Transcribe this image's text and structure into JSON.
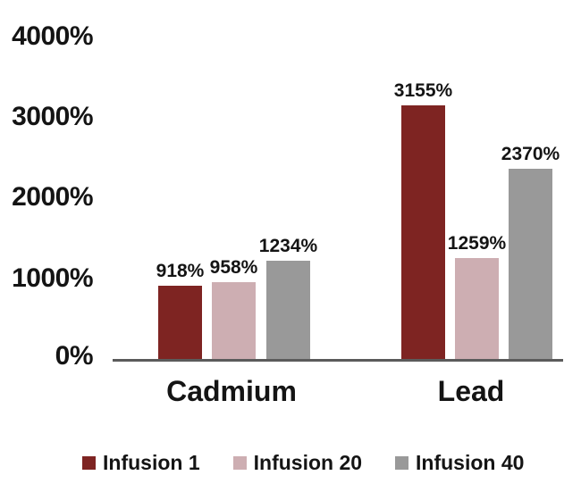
{
  "chart_data": {
    "type": "bar",
    "title": "",
    "categories": [
      "Cadmium",
      "Lead"
    ],
    "series": [
      {
        "name": "Infusion 1",
        "color": "#7E2422",
        "values": [
          918,
          3155
        ],
        "labels": [
          "918%",
          "3155%"
        ]
      },
      {
        "name": "Infusion 20",
        "color": "#CDAEB2",
        "values": [
          958,
          1259
        ],
        "labels": [
          "958%",
          "1259%"
        ]
      },
      {
        "name": "Infusion 40",
        "color": "#999999",
        "values": [
          1234,
          2370
        ],
        "labels": [
          "1234%",
          "2370%"
        ]
      }
    ],
    "y_axis": {
      "min": 0,
      "max": 4000,
      "unit": "%",
      "ticks": [
        {
          "value": 4000,
          "label": "4000%"
        },
        {
          "value": 3000,
          "label": "3000%"
        },
        {
          "value": 2000,
          "label": "2000%"
        },
        {
          "value": 1000,
          "label": "1000%"
        },
        {
          "value": 0,
          "label": "0%"
        }
      ]
    },
    "xlabel": "",
    "ylabel": "",
    "grid": false,
    "legend_position": "bottom",
    "axis_line_color": "#5B5B5B",
    "text_color": "#141414",
    "background_color": "#ffffff"
  }
}
